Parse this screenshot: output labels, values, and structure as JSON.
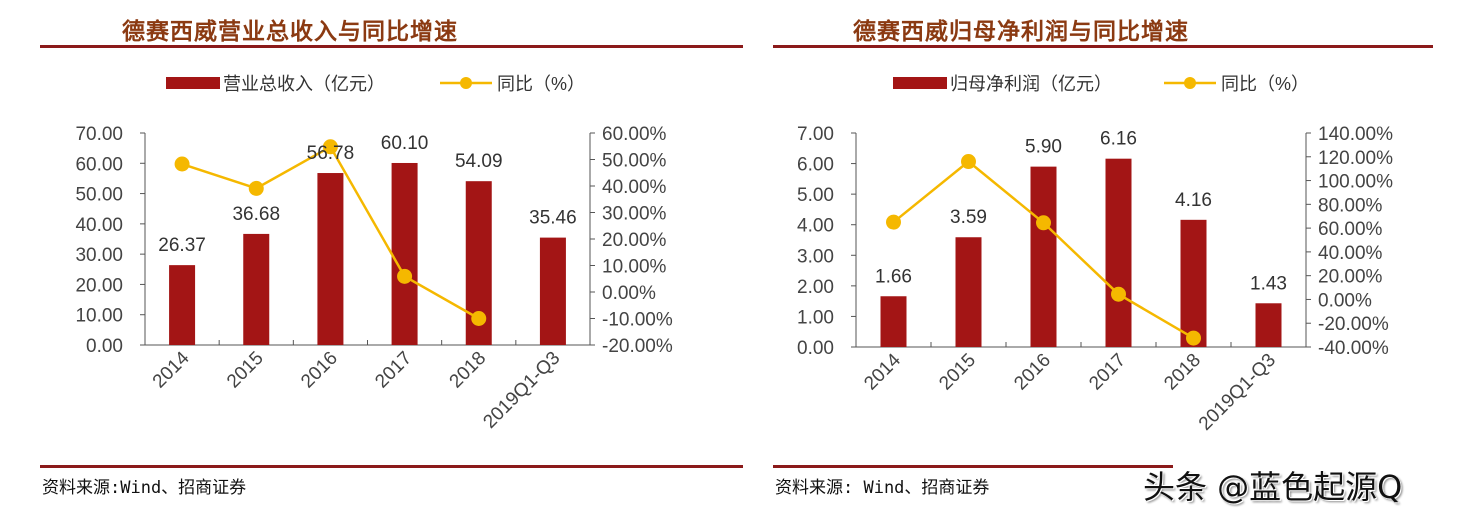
{
  "left": {
    "title": "德赛西威营业总收入与同比增速",
    "legend_bar": "营业总收入（亿元）",
    "legend_line": "同比（%）",
    "source": "资料来源:Wind、招商证券"
  },
  "right": {
    "title": "德赛西威归母净利润与同比增速",
    "legend_bar": "归母净利润（亿元）",
    "legend_line": "同比（%）",
    "source": "资料来源: Wind、招商证券"
  },
  "watermark": "头条 @蓝色起源Q",
  "colors": {
    "bar": "#A31515",
    "line": "#F5B800",
    "title": "#8B3A12",
    "rule": "#8B1A1A",
    "axis_text": "#444444"
  },
  "chart_data": [
    {
      "type": "bar+line",
      "title": "德赛西威营业总收入与同比增速",
      "categories": [
        "2014",
        "2015",
        "2016",
        "2017",
        "2018",
        "2019Q1-Q3"
      ],
      "series": [
        {
          "name": "营业总收入（亿元）",
          "type": "bar",
          "axis": "left",
          "values": [
            26.37,
            36.68,
            56.78,
            60.1,
            54.09,
            35.46
          ],
          "labels": [
            "26.37",
            "36.68",
            "56.78",
            "60.10",
            "54.09",
            "35.46"
          ]
        },
        {
          "name": "同比（%）",
          "type": "line",
          "axis": "right",
          "values": [
            48.3,
            39.1,
            54.8,
            5.9,
            -10.0,
            null
          ]
        }
      ],
      "left_axis": {
        "min": 0,
        "max": 70,
        "step": 10,
        "ticks": [
          "0.00",
          "10.00",
          "20.00",
          "30.00",
          "40.00",
          "50.00",
          "60.00",
          "70.00"
        ]
      },
      "right_axis": {
        "min": -20,
        "max": 60,
        "step": 10,
        "ticks": [
          "-20.00%",
          "-10.00%",
          "0.00%",
          "10.00%",
          "20.00%",
          "30.00%",
          "40.00%",
          "50.00%",
          "60.00%"
        ]
      },
      "legend_position": "top",
      "grid": false
    },
    {
      "type": "bar+line",
      "title": "德赛西威归母净利润与同比增速",
      "categories": [
        "2014",
        "2015",
        "2016",
        "2017",
        "2018",
        "2019Q1-Q3"
      ],
      "series": [
        {
          "name": "归母净利润（亿元）",
          "type": "bar",
          "axis": "left",
          "values": [
            1.66,
            3.59,
            5.9,
            6.16,
            4.16,
            1.43
          ],
          "labels": [
            "1.66",
            "3.59",
            "5.90",
            "6.16",
            "4.16",
            "1.43"
          ]
        },
        {
          "name": "同比（%）",
          "type": "line",
          "axis": "right",
          "values": [
            65.0,
            116.0,
            64.5,
            4.4,
            -32.5,
            null
          ]
        }
      ],
      "left_axis": {
        "min": 0,
        "max": 7,
        "step": 1,
        "ticks": [
          "0.00",
          "1.00",
          "2.00",
          "3.00",
          "4.00",
          "5.00",
          "6.00",
          "7.00"
        ]
      },
      "right_axis": {
        "min": -40,
        "max": 140,
        "step": 20,
        "ticks": [
          "-40.00%",
          "-20.00%",
          "0.00%",
          "20.00%",
          "40.00%",
          "60.00%",
          "80.00%",
          "100.00%",
          "120.00%",
          "140.00%"
        ]
      },
      "legend_position": "top",
      "grid": false
    }
  ]
}
